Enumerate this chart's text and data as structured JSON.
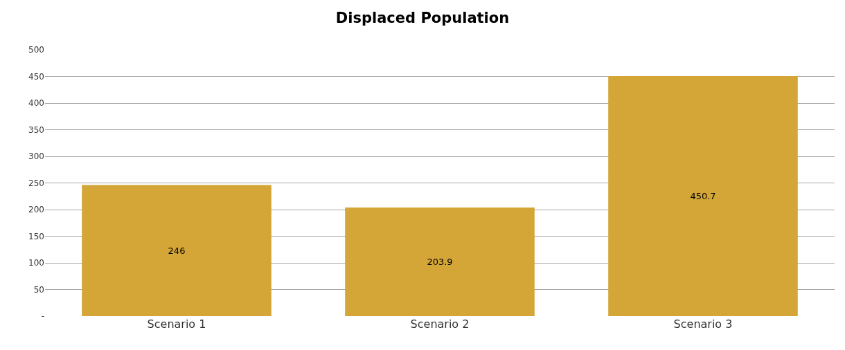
{
  "chart_data": {
    "type": "bar",
    "title": "Displaced Population",
    "categories": [
      "Scenario 1",
      "Scenario 2",
      "Scenario 3"
    ],
    "values": [
      246,
      203.9,
      450.7
    ],
    "color": "#d4a537",
    "ylim": [
      0,
      500
    ],
    "yticks": [
      {
        "value": 0,
        "label": "-"
      },
      50,
      100,
      150,
      200,
      250,
      300,
      350,
      400,
      450,
      500
    ],
    "grid": true,
    "data_labels": true
  }
}
